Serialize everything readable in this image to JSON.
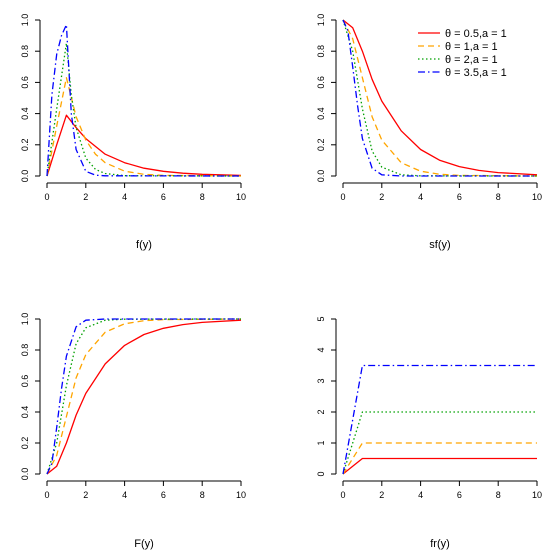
{
  "legend": {
    "position": "top-right",
    "entries": [
      {
        "label": "θ = 0.5,a = 1",
        "color": "#ff0000",
        "dash": "solid"
      },
      {
        "label": "θ = 1,a = 1",
        "color": "#ffa500",
        "dash": "dashed"
      },
      {
        "label": "θ = 2,a = 1",
        "color": "#00a000",
        "dash": "dotted"
      },
      {
        "label": "θ = 3.5,a = 1",
        "color": "#0000ff",
        "dash": "dashdot"
      }
    ]
  },
  "chart_data": [
    {
      "type": "line",
      "xlabel": "f(y)",
      "ylabel": "",
      "xlim": [
        0,
        10
      ],
      "ylim": [
        0,
        1
      ],
      "xticks": [
        "0",
        "2",
        "4",
        "6",
        "8",
        "10"
      ],
      "yticks": [
        "0.0",
        "0.2",
        "0.4",
        "0.6",
        "0.8",
        "1.0"
      ],
      "legend": false,
      "series": [
        {
          "color": "#ff0000",
          "dash": "solid",
          "x": [
            0,
            0.5,
            1,
            1.5,
            2,
            3,
            4,
            5,
            6,
            7,
            8,
            10
          ],
          "y": [
            0.0,
            0.2,
            0.39,
            0.31,
            0.24,
            0.14,
            0.085,
            0.05,
            0.03,
            0.018,
            0.011,
            0.004
          ]
        },
        {
          "color": "#ffa500",
          "dash": "dashed",
          "x": [
            0,
            0.5,
            1,
            1.5,
            2,
            2.5,
            3,
            4,
            5,
            6,
            10
          ],
          "y": [
            0.0,
            0.32,
            0.63,
            0.38,
            0.23,
            0.14,
            0.085,
            0.031,
            0.011,
            0.004,
            0.0
          ]
        },
        {
          "color": "#00a000",
          "dash": "dotted",
          "x": [
            0,
            0.5,
            1,
            1.25,
            1.5,
            2,
            2.5,
            3,
            4,
            10
          ],
          "y": [
            0.0,
            0.43,
            0.85,
            0.52,
            0.31,
            0.115,
            0.042,
            0.016,
            0.002,
            0.0
          ]
        },
        {
          "color": "#0000ff",
          "dash": "dashdot",
          "x": [
            0,
            0.25,
            0.5,
            0.75,
            1,
            1.25,
            1.5,
            2,
            2.5,
            3,
            10
          ],
          "y": [
            0.0,
            0.52,
            0.78,
            0.9,
            0.97,
            0.4,
            0.17,
            0.03,
            0.005,
            0.001,
            0.0
          ]
        }
      ]
    },
    {
      "type": "line",
      "xlabel": "sf(y)",
      "ylabel": "",
      "xlim": [
        0,
        10
      ],
      "ylim": [
        0,
        1
      ],
      "xticks": [
        "0",
        "2",
        "4",
        "6",
        "8",
        "10"
      ],
      "yticks": [
        "0.0",
        "0.2",
        "0.4",
        "0.6",
        "0.8",
        "1.0"
      ],
      "legend": true,
      "series": [
        {
          "color": "#ff0000",
          "dash": "solid",
          "x": [
            0,
            0.5,
            1,
            1.5,
            2,
            3,
            4,
            5,
            6,
            7,
            8,
            10
          ],
          "y": [
            1.0,
            0.95,
            0.8,
            0.62,
            0.48,
            0.29,
            0.17,
            0.1,
            0.06,
            0.036,
            0.022,
            0.008
          ]
        },
        {
          "color": "#ffa500",
          "dash": "dashed",
          "x": [
            0,
            0.5,
            1,
            1.5,
            2,
            3,
            4,
            5,
            6,
            10
          ],
          "y": [
            1.0,
            0.88,
            0.63,
            0.38,
            0.23,
            0.085,
            0.031,
            0.011,
            0.004,
            0.0
          ]
        },
        {
          "color": "#00a000",
          "dash": "dotted",
          "x": [
            0,
            0.5,
            1,
            1.5,
            2,
            3,
            4,
            10
          ],
          "y": [
            1.0,
            0.8,
            0.43,
            0.16,
            0.057,
            0.008,
            0.001,
            0.0
          ]
        },
        {
          "color": "#0000ff",
          "dash": "dashdot",
          "x": [
            0,
            0.25,
            0.5,
            0.75,
            1,
            1.5,
            2,
            3,
            10
          ],
          "y": [
            1.0,
            0.93,
            0.7,
            0.45,
            0.24,
            0.05,
            0.008,
            0.0,
            0.0
          ]
        }
      ]
    },
    {
      "type": "line",
      "xlabel": "F(y)",
      "ylabel": "",
      "xlim": [
        0,
        10
      ],
      "ylim": [
        0,
        1
      ],
      "xticks": [
        "0",
        "2",
        "4",
        "6",
        "8",
        "10"
      ],
      "yticks": [
        "0.0",
        "0.2",
        "0.4",
        "0.6",
        "0.8",
        "1.0"
      ],
      "legend": false,
      "series": [
        {
          "color": "#ff0000",
          "dash": "solid",
          "x": [
            0,
            0.5,
            1,
            1.5,
            2,
            3,
            4,
            5,
            6,
            7,
            8,
            10
          ],
          "y": [
            0.0,
            0.05,
            0.2,
            0.38,
            0.52,
            0.71,
            0.83,
            0.9,
            0.94,
            0.964,
            0.978,
            0.992
          ]
        },
        {
          "color": "#ffa500",
          "dash": "dashed",
          "x": [
            0,
            0.5,
            1,
            1.5,
            2,
            3,
            4,
            5,
            6,
            10
          ],
          "y": [
            0.0,
            0.12,
            0.37,
            0.62,
            0.77,
            0.915,
            0.969,
            0.989,
            0.996,
            1.0
          ]
        },
        {
          "color": "#00a000",
          "dash": "dotted",
          "x": [
            0,
            0.5,
            1,
            1.5,
            2,
            3,
            4,
            10
          ],
          "y": [
            0.0,
            0.2,
            0.57,
            0.84,
            0.943,
            0.992,
            0.999,
            1.0
          ]
        },
        {
          "color": "#0000ff",
          "dash": "dashdot",
          "x": [
            0,
            0.25,
            0.5,
            0.75,
            1,
            1.5,
            2,
            3,
            10
          ],
          "y": [
            0.0,
            0.07,
            0.3,
            0.55,
            0.76,
            0.95,
            0.992,
            1.0,
            1.0
          ]
        }
      ]
    },
    {
      "type": "line",
      "xlabel": "fr(y)",
      "ylabel": "",
      "xlim": [
        0,
        10
      ],
      "ylim": [
        0,
        5
      ],
      "xticks": [
        "0",
        "2",
        "4",
        "6",
        "8",
        "10"
      ],
      "yticks": [
        "0",
        "1",
        "2",
        "3",
        "4",
        "5"
      ],
      "legend": false,
      "series": [
        {
          "color": "#ff0000",
          "dash": "solid",
          "x": [
            0,
            1,
            10
          ],
          "y": [
            0.0,
            0.5,
            0.5
          ]
        },
        {
          "color": "#ffa500",
          "dash": "dashed",
          "x": [
            0,
            1,
            10
          ],
          "y": [
            0.0,
            1.0,
            1.0
          ]
        },
        {
          "color": "#00a000",
          "dash": "dotted",
          "x": [
            0,
            1,
            10
          ],
          "y": [
            0.0,
            2.0,
            2.0
          ]
        },
        {
          "color": "#0000ff",
          "dash": "dashdot",
          "x": [
            0,
            1,
            10
          ],
          "y": [
            0.0,
            3.5,
            3.5
          ]
        }
      ]
    }
  ]
}
